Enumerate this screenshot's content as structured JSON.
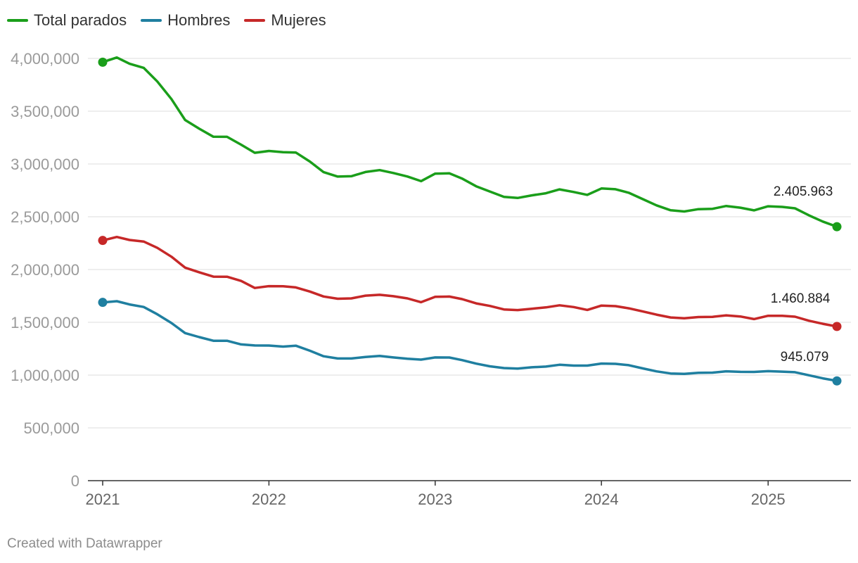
{
  "chart_data": {
    "type": "line",
    "title": "",
    "xlabel": "",
    "ylabel": "",
    "x": [
      "2021-01",
      "2021-02",
      "2021-03",
      "2021-04",
      "2021-05",
      "2021-06",
      "2021-07",
      "2021-08",
      "2021-09",
      "2021-10",
      "2021-11",
      "2021-12",
      "2022-01",
      "2022-02",
      "2022-03",
      "2022-04",
      "2022-05",
      "2022-06",
      "2022-07",
      "2022-08",
      "2022-09",
      "2022-10",
      "2022-11",
      "2022-12",
      "2023-01",
      "2023-02",
      "2023-03",
      "2023-04",
      "2023-05",
      "2023-06",
      "2023-07",
      "2023-08",
      "2023-09",
      "2023-10",
      "2023-11",
      "2023-12",
      "2024-01",
      "2024-02",
      "2024-03",
      "2024-04",
      "2024-05",
      "2024-06",
      "2024-07",
      "2024-08",
      "2024-09",
      "2024-10",
      "2024-11",
      "2024-12",
      "2025-01",
      "2025-02",
      "2025-03",
      "2025-04",
      "2025-05",
      "2025-06"
    ],
    "x_ticks": [
      "2021",
      "2022",
      "2023",
      "2024",
      "2025"
    ],
    "y_ticks": [
      "0",
      "500,000",
      "1,000,000",
      "1,500,000",
      "2,000,000",
      "2,500,000",
      "3,000,000",
      "3,500,000",
      "4,000,000"
    ],
    "ylim": [
      0,
      4000000
    ],
    "grid": true,
    "legend_position": "top-left",
    "series": [
      {
        "name": "Total parados",
        "color": "#1a9e1a",
        "values": [
          3964353,
          4008789,
          3949640,
          3910628,
          3781250,
          3614339,
          3416498,
          3333915,
          3257802,
          3257068,
          3182687,
          3105940,
          3123078,
          3111684,
          3108763,
          3022503,
          2922911,
          2880582,
          2883812,
          2924240,
          2941919,
          2914892,
          2881380,
          2837653,
          2908397,
          2911015,
          2862260,
          2788370,
          2739110,
          2688842,
          2677874,
          2702700,
          2722468,
          2759404,
          2734831,
          2707456,
          2767860,
          2760408,
          2727003,
          2666500,
          2607850,
          2561067,
          2550237,
          2572121,
          2575285,
          2602054,
          2586018,
          2560718,
          2599443,
          2593449,
          2580138,
          2512718,
          2454883,
          2405963
        ],
        "end_label": "2.405.963"
      },
      {
        "name": "Hombres",
        "color": "#1f7fa0",
        "values": [
          1688862,
          1700025,
          1669418,
          1645212,
          1576060,
          1493023,
          1398254,
          1360212,
          1325050,
          1325200,
          1290600,
          1280550,
          1280200,
          1270100,
          1278400,
          1231000,
          1178500,
          1157300,
          1157100,
          1171800,
          1181250,
          1167250,
          1154400,
          1146800,
          1167000,
          1166700,
          1142100,
          1108900,
          1083600,
          1066800,
          1061900,
          1073800,
          1081000,
          1097800,
          1090200,
          1089900,
          1109500,
          1107000,
          1094100,
          1063500,
          1035400,
          1015100,
          1011500,
          1022300,
          1023500,
          1036000,
          1030400,
          1030300,
          1037300,
          1032400,
          1027100,
          997900,
          969200,
          945079
        ],
        "end_label": "945.079"
      },
      {
        "name": "Mujeres",
        "color": "#c62828",
        "values": [
          2275491,
          2308764,
          2280222,
          2265416,
          2205190,
          2121316,
          2018244,
          1973703,
          1932752,
          1931868,
          1892087,
          1825390,
          1842878,
          1841584,
          1830363,
          1791503,
          1744411,
          1723282,
          1726712,
          1752440,
          1760669,
          1747642,
          1726980,
          1690853,
          1741397,
          1744315,
          1720160,
          1679470,
          1655510,
          1622042,
          1615974,
          1628900,
          1641468,
          1661604,
          1644631,
          1617556,
          1658360,
          1653408,
          1632903,
          1603000,
          1572450,
          1545967,
          1538737,
          1549821,
          1551785,
          1566054,
          1555618,
          1530418,
          1562143,
          1561049,
          1553038,
          1514818,
          1485683,
          1460884
        ],
        "end_label": "1.460.884"
      }
    ]
  },
  "footer": "Created with Datawrapper"
}
